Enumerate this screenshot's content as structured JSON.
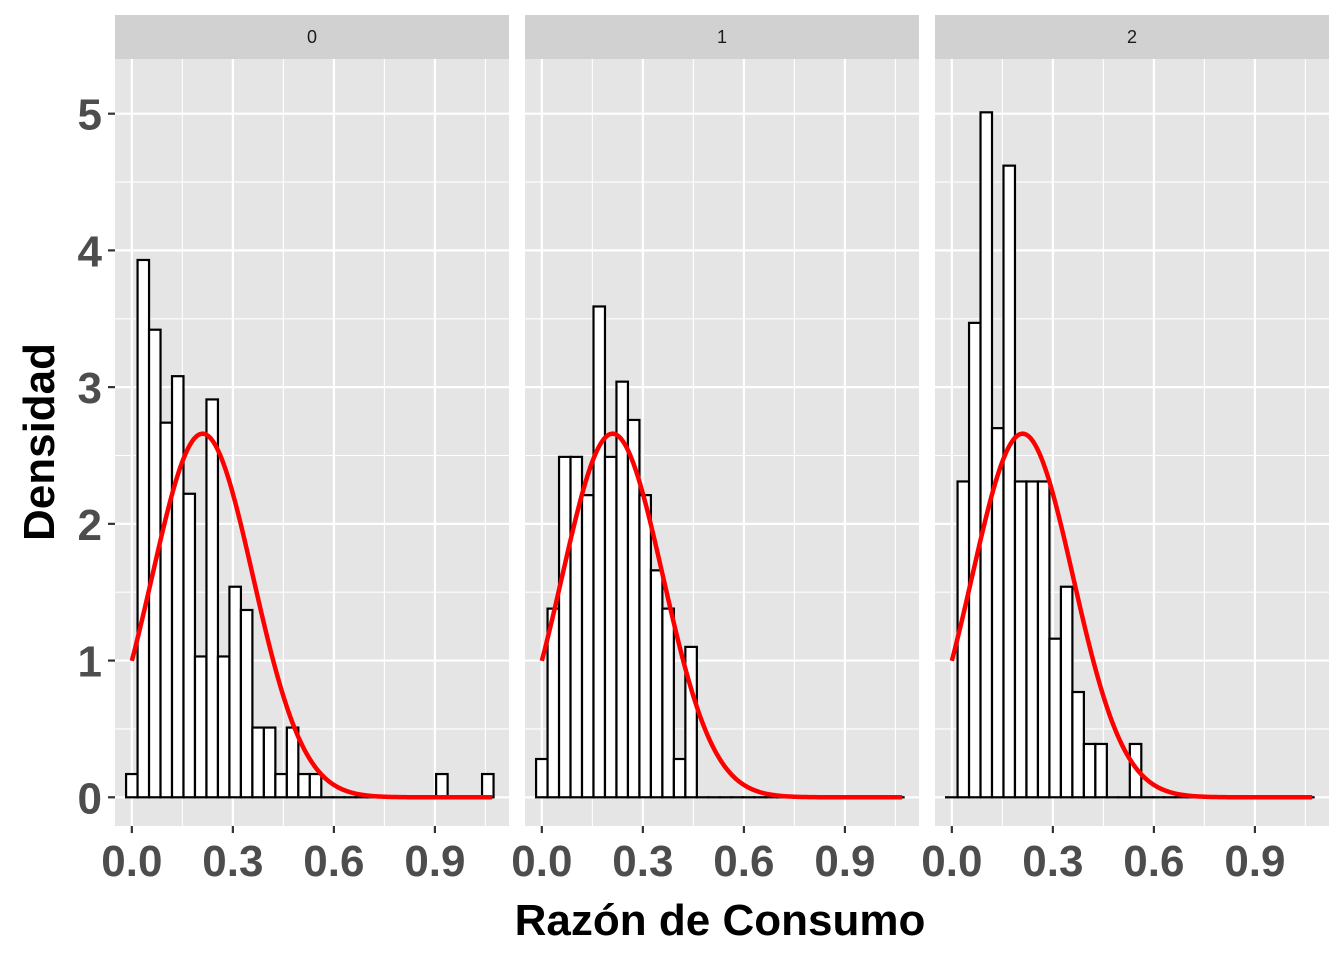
{
  "chart_data": {
    "type": "bar",
    "subtype": "faceted histogram with fitted normal density curve",
    "xlabel": "Razón de Consumo",
    "ylabel": "Densidad",
    "xlim": [
      -0.05,
      1.12
    ],
    "ylim": [
      -0.21,
      5.4
    ],
    "x_ticks": [
      0.0,
      0.3,
      0.6,
      0.9
    ],
    "x_tick_labels": [
      "0.0",
      "0.3",
      "0.6",
      "0.9"
    ],
    "y_ticks": [
      0,
      1,
      2,
      3,
      4,
      5
    ],
    "y_tick_labels": [
      "0",
      "1",
      "2",
      "3",
      "4",
      "5"
    ],
    "grid": true,
    "bin_width": 0.0341,
    "bin_start": -0.0171,
    "bar_fill": "#ffffff",
    "bar_outline": "#000000",
    "panel_background": "#e5e5e5",
    "strip_background": "#d1d1d1",
    "curve_color": "#ff0000",
    "curve": {
      "mean": 0.21,
      "sd": 0.15,
      "x_range": [
        0.0,
        1.07
      ]
    },
    "facets": [
      {
        "label": "0",
        "densities": [
          0.17,
          3.93,
          3.42,
          2.74,
          3.08,
          2.22,
          1.03,
          2.91,
          1.03,
          1.54,
          1.37,
          0.51,
          0.51,
          0.17,
          0.51,
          0.17,
          0.17,
          0,
          0,
          0,
          0,
          0,
          0,
          0,
          0,
          0,
          0,
          0.17,
          0,
          0,
          0,
          0.17
        ]
      },
      {
        "label": "1",
        "densities": [
          0.28,
          1.38,
          2.49,
          2.49,
          2.21,
          3.59,
          2.49,
          3.04,
          2.76,
          2.21,
          1.66,
          1.38,
          0.28,
          1.1,
          0,
          0,
          0,
          0,
          0,
          0,
          0,
          0,
          0,
          0,
          0,
          0,
          0,
          0,
          0,
          0,
          0,
          0
        ]
      },
      {
        "label": "2",
        "densities": [
          0,
          2.31,
          3.47,
          5.01,
          2.7,
          4.62,
          2.31,
          2.31,
          2.31,
          1.16,
          1.54,
          0.77,
          0.39,
          0.39,
          0,
          0,
          0.39,
          0,
          0,
          0,
          0,
          0,
          0,
          0,
          0,
          0,
          0,
          0,
          0,
          0,
          0,
          0
        ]
      }
    ]
  }
}
